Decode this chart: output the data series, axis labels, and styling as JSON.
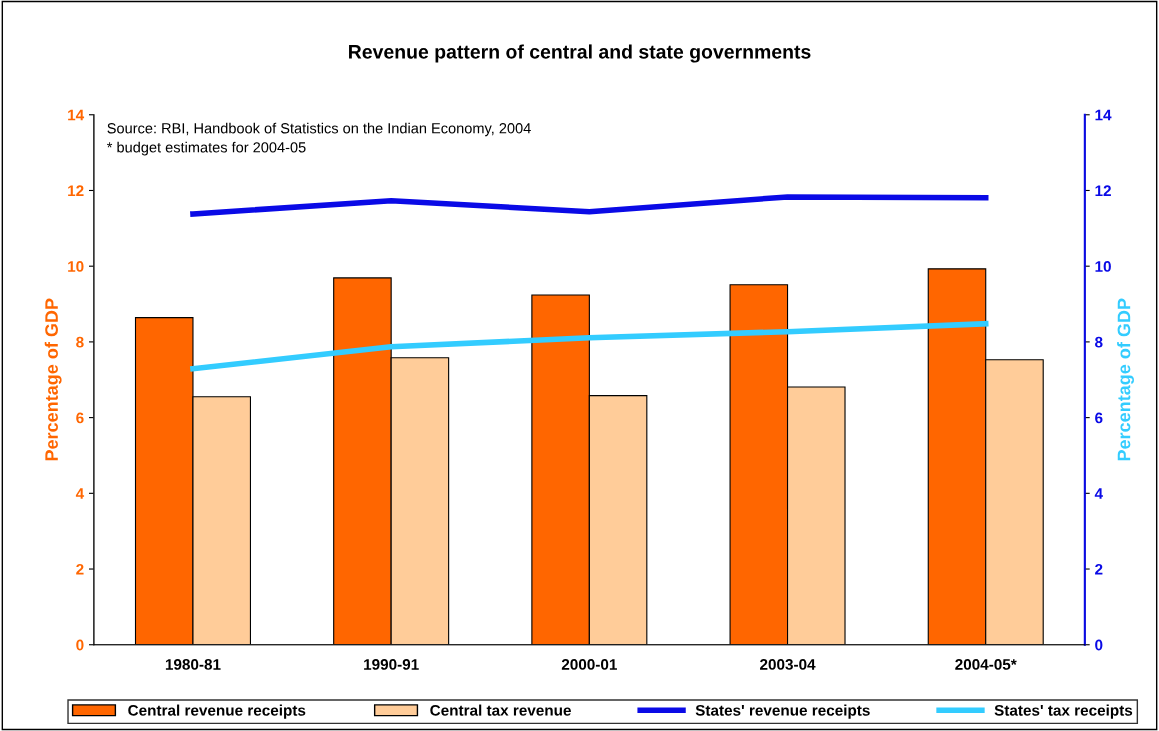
{
  "chart_data": {
    "type": "bar",
    "title": "Revenue pattern of central and state governments",
    "categories": [
      "1980-81",
      "1990-91",
      "2000-01",
      "2003-04",
      "2004-05*"
    ],
    "series": [
      {
        "name": "Central revenue receipts",
        "color": "#ff6600",
        "values": [
          8.64,
          9.69,
          9.24,
          9.51,
          9.93
        ]
      },
      {
        "name": "Central tax revenue",
        "color": "#ffcc99",
        "values": [
          6.55,
          7.58,
          6.58,
          6.81,
          7.53
        ]
      },
      {
        "name": "States' revenue receipts",
        "color": "#0a0ae6",
        "type": "line",
        "values": [
          11.38,
          11.73,
          11.44,
          11.83,
          11.81
        ]
      },
      {
        "name": "States' tax receipts",
        "color": "#33ccff",
        "type": "line",
        "values": [
          7.29,
          7.87,
          8.11,
          8.27,
          8.48
        ]
      }
    ],
    "ylabel": "Percentage of GDP",
    "y2label": "Percentage of GDP",
    "ylim": [
      0,
      14
    ],
    "yticks": [
      0,
      2,
      4,
      6,
      8,
      10,
      12,
      14
    ],
    "y2lim": [
      0,
      14
    ],
    "y2ticks": [
      0,
      2,
      4,
      6,
      8,
      10,
      12,
      14
    ],
    "annotations": [
      "Source: RBI, Handbook of Statistics on the Indian Economy, 2004",
      "* budget estimates for 2004-05"
    ],
    "legend": "bottom",
    "grid": false,
    "marker": "none",
    "line_style": "solid"
  }
}
